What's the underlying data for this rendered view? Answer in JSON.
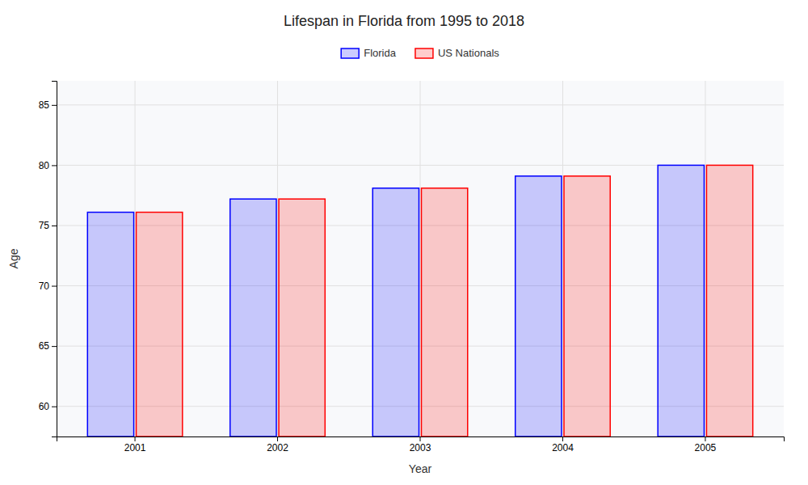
{
  "chart_data": {
    "type": "bar",
    "title": "Lifespan in Florida from 1995 to 2018",
    "x_label": "Year",
    "y_label": "Age",
    "categories": [
      "2001",
      "2002",
      "2003",
      "2004",
      "2005"
    ],
    "series": [
      {
        "name": "Florida",
        "color": "#0000ff",
        "values": [
          76.1,
          77.2,
          78.1,
          79.1,
          80.0
        ]
      },
      {
        "name": "US Nationals",
        "color": "#ff0000",
        "values": [
          76.1,
          77.2,
          78.1,
          79.1,
          80.0
        ]
      }
    ],
    "ylim": [
      57.5,
      87
    ],
    "yticks": [
      60,
      65,
      70,
      75,
      80,
      85
    ],
    "grid": true,
    "legend": "top"
  }
}
